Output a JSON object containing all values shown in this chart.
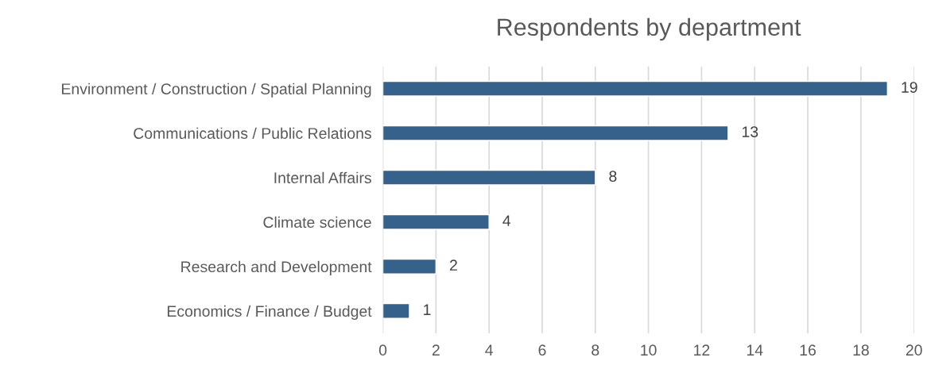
{
  "chart_data": {
    "type": "bar",
    "title": "Respondents by department",
    "orientation": "horizontal",
    "categories": [
      "Environment / Construction / Spatial Planning",
      "Communications / Public Relations",
      "Internal Affairs",
      "Climate science",
      "Research and Development",
      "Economics / Finance / Budget"
    ],
    "values": [
      19,
      13,
      8,
      4,
      2,
      1
    ],
    "color": "#35618a",
    "xlim": [
      0,
      20
    ],
    "xticks": [
      0,
      2,
      4,
      6,
      8,
      10,
      12,
      14,
      16,
      18,
      20
    ],
    "grid": "x",
    "data_labels": true
  }
}
